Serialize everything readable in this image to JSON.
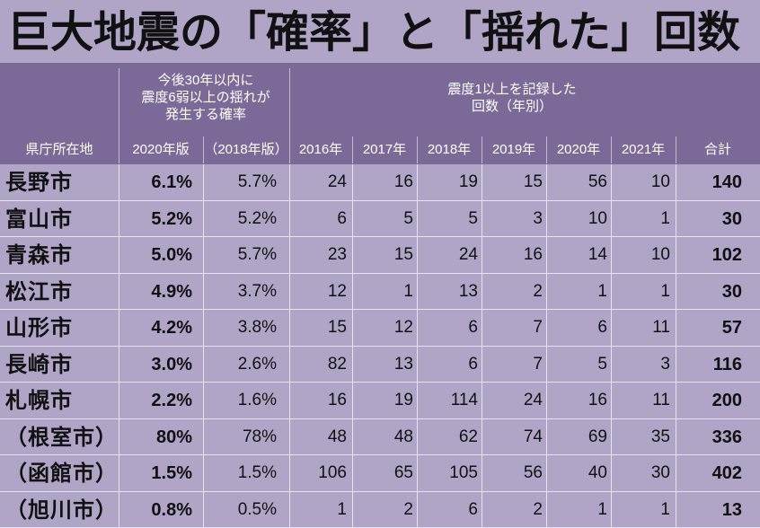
{
  "title": "巨大地震の「確率」と「揺れた」回数",
  "header": {
    "probability_group": "今後30年以内に\n震度6弱以上の揺れが\n発生する確率",
    "count_group": "震度1以上を記録した\n回数（年別）",
    "columns": [
      "県庁所在地",
      "2020年版",
      "（2018年版）",
      "2016年",
      "2017年",
      "2018年",
      "2019年",
      "2020年",
      "2021年",
      "合計"
    ]
  },
  "rows": [
    {
      "city": "長野市",
      "p2020": "6.1%",
      "p2018": "5.7%",
      "y2016": "24",
      "y2017": "16",
      "y2018": "19",
      "y2019": "15",
      "y2020": "56",
      "y2021": "10",
      "total": "140"
    },
    {
      "city": "富山市",
      "p2020": "5.2%",
      "p2018": "5.2%",
      "y2016": "6",
      "y2017": "5",
      "y2018": "5",
      "y2019": "3",
      "y2020": "10",
      "y2021": "1",
      "total": "30"
    },
    {
      "city": "青森市",
      "p2020": "5.0%",
      "p2018": "5.7%",
      "y2016": "23",
      "y2017": "15",
      "y2018": "24",
      "y2019": "16",
      "y2020": "14",
      "y2021": "10",
      "total": "102"
    },
    {
      "city": "松江市",
      "p2020": "4.9%",
      "p2018": "3.7%",
      "y2016": "12",
      "y2017": "1",
      "y2018": "13",
      "y2019": "2",
      "y2020": "1",
      "y2021": "1",
      "total": "30"
    },
    {
      "city": "山形市",
      "p2020": "4.2%",
      "p2018": "3.8%",
      "y2016": "15",
      "y2017": "12",
      "y2018": "6",
      "y2019": "7",
      "y2020": "6",
      "y2021": "11",
      "total": "57"
    },
    {
      "city": "長崎市",
      "p2020": "3.0%",
      "p2018": "2.6%",
      "y2016": "82",
      "y2017": "13",
      "y2018": "6",
      "y2019": "7",
      "y2020": "5",
      "y2021": "3",
      "total": "116"
    },
    {
      "city": "札幌市",
      "p2020": "2.2%",
      "p2018": "1.6%",
      "y2016": "16",
      "y2017": "19",
      "y2018": "114",
      "y2019": "24",
      "y2020": "16",
      "y2021": "11",
      "total": "200"
    },
    {
      "city": "（根室市）",
      "p2020": "80%",
      "p2018": "78%",
      "y2016": "48",
      "y2017": "48",
      "y2018": "62",
      "y2019": "74",
      "y2020": "69",
      "y2021": "35",
      "total": "336"
    },
    {
      "city": "（函館市）",
      "p2020": "1.5%",
      "p2018": "1.5%",
      "y2016": "106",
      "y2017": "65",
      "y2018": "105",
      "y2019": "56",
      "y2020": "40",
      "y2021": "30",
      "total": "402"
    },
    {
      "city": "（旭川市）",
      "p2020": "0.8%",
      "p2018": "0.5%",
      "y2016": "1",
      "y2017": "2",
      "y2018": "6",
      "y2019": "2",
      "y2020": "1",
      "y2021": "1",
      "total": "13"
    }
  ]
}
